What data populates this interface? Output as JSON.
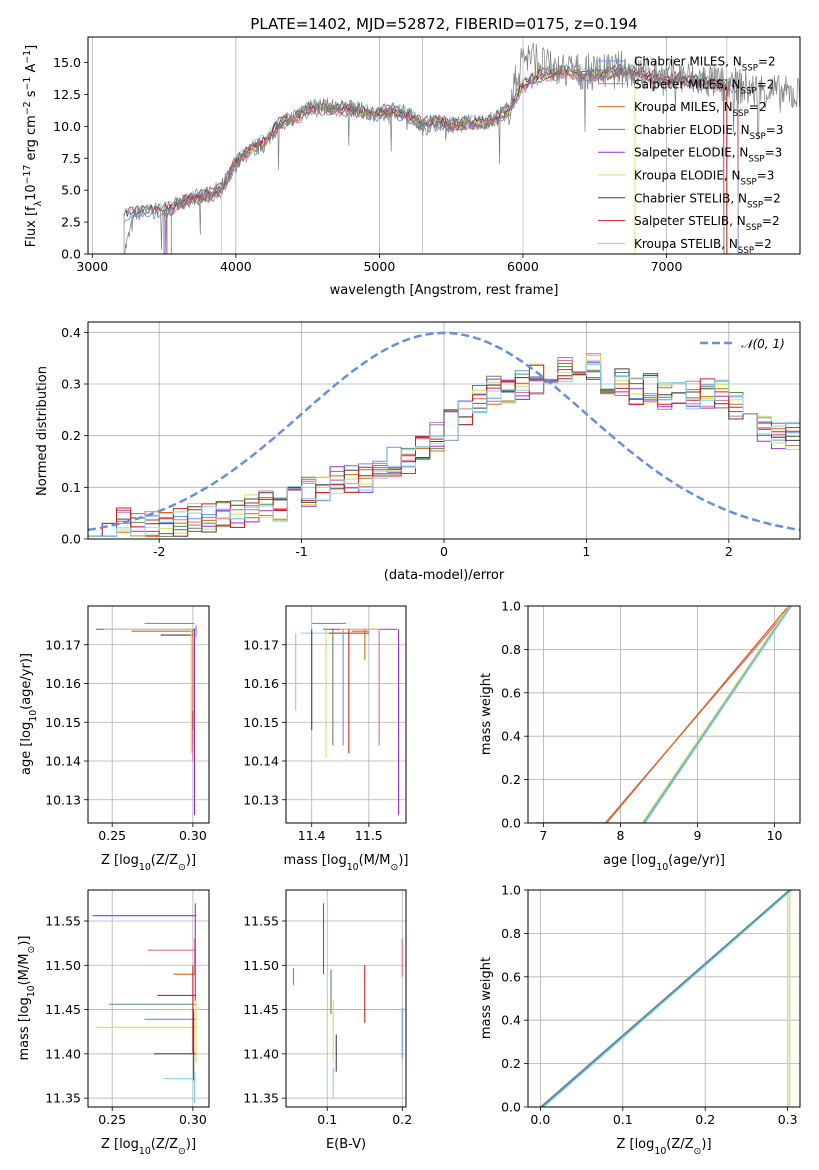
{
  "chart_data": [
    {
      "type": "line",
      "title": "PLATE=1402, MJD=52872, FIBERID=0175, z=0.194",
      "xlabel": "wavelength [Angstrom, rest frame]",
      "ylabel": "Flux [f$_\\lambda$10$^{-17}$ erg cm$^{-2}$ s$^{-1}$ A$^{-1}$]",
      "ylabel_parts": [
        "Flux [f",
        "λ",
        "10",
        "−17",
        " erg cm",
        "−2",
        " s",
        "−1",
        " A",
        "−1",
        "]"
      ],
      "xlim": [
        2970,
        7930
      ],
      "ylim": [
        0,
        17
      ],
      "xticks": [
        3000,
        4000,
        5000,
        6000,
        7000
      ],
      "yticks": [
        0.0,
        2.5,
        5.0,
        7.5,
        10.0,
        12.5,
        15.0
      ],
      "grid_x": [
        3000,
        4000,
        5000,
        6000,
        7000
      ],
      "legend_position": "right",
      "data_series": {
        "name": "data",
        "color": "#808080",
        "x": [
          3220,
          3300,
          3400,
          3500,
          3600,
          3700,
          3800,
          3900,
          4000,
          4100,
          4200,
          4300,
          4400,
          4500,
          4600,
          4700,
          4800,
          4900,
          5000,
          5100,
          5200,
          5300,
          5400,
          5500,
          5600,
          5700,
          5800,
          5900,
          6000,
          6100,
          6200,
          6300,
          6400,
          6500,
          6600,
          6700,
          6800,
          6900,
          7000,
          7100,
          7200,
          7300,
          7400,
          7500,
          7600,
          7700,
          7800
        ],
        "y": [
          0.0,
          3.2,
          3.3,
          3.4,
          3.8,
          4.4,
          4.6,
          5.2,
          7.0,
          8.1,
          8.6,
          10.2,
          10.7,
          11.6,
          11.6,
          11.5,
          11.4,
          11.2,
          11.0,
          11.3,
          11.0,
          9.9,
          10.3,
          10.1,
          10.3,
          10.3,
          10.6,
          11.4,
          15.6,
          15.2,
          14.4,
          14.4,
          14.3,
          14.2,
          14.3,
          14.5,
          14.2,
          14.0,
          13.8,
          13.9,
          13.6,
          13.6,
          13.2,
          13.2,
          12.8,
          12.9,
          12.5
        ]
      },
      "series": [
        {
          "name": "Chabrier MILES, N_SSP=2",
          "label_parts": [
            "Chabrier MILES, N",
            "SSP",
            "=2"
          ],
          "color": "#6495ed"
        },
        {
          "name": "Salpeter MILES, N_SSP=2",
          "label_parts": [
            "Salpeter MILES, N",
            "SSP",
            "=2"
          ],
          "color": "#db7093"
        },
        {
          "name": "Kroupa MILES, N_SSP=2",
          "label_parts": [
            "Kroupa MILES, N",
            "SSP",
            "=2"
          ],
          "color": "#d2691e"
        },
        {
          "name": "Chabrier ELODIE, N_SSP=3",
          "label_parts": [
            "Chabrier ELODIE, N",
            "SSP",
            "=3"
          ],
          "color": "#5a8a5a"
        },
        {
          "name": "Salpeter ELODIE, N_SSP=3",
          "label_parts": [
            "Salpeter ELODIE, N",
            "SSP",
            "=3"
          ],
          "color": "#9932cc"
        },
        {
          "name": "Kroupa ELODIE, N_SSP=3",
          "label_parts": [
            "Kroupa ELODIE, N",
            "SSP",
            "=3"
          ],
          "color": "#d4e157"
        },
        {
          "name": "Chabrier STELIB, N_SSP=2",
          "label_parts": [
            "Chabrier STELIB, N",
            "SSP",
            "=2"
          ],
          "color": "#444444"
        },
        {
          "name": "Salpeter STELIB, N_SSP=2",
          "label_parts": [
            "Salpeter STELIB, N",
            "SSP",
            "=2"
          ],
          "color": "#cc2222"
        },
        {
          "name": "Kroupa STELIB, N_SSP=2",
          "label_parts": [
            "Kroupa STELIB, N",
            "SSP",
            "=2"
          ],
          "color": "#87ceeb"
        }
      ],
      "model_x": [
        3220,
        3300,
        3400,
        3500,
        3600,
        3700,
        3800,
        3900,
        4000,
        4100,
        4200,
        4300,
        4400,
        4500,
        4600,
        4700,
        4800,
        4900,
        5000,
        5100,
        5200,
        5300,
        5400,
        5500,
        5600,
        5700,
        5800,
        5900,
        6000,
        6100,
        6200,
        6300,
        6400,
        6500,
        6600,
        6700,
        6800,
        6900,
        7000,
        7100,
        7200,
        7300,
        7400
      ],
      "model_y": [
        3.1,
        3.2,
        3.3,
        3.5,
        3.9,
        4.4,
        4.6,
        5.0,
        7.2,
        8.2,
        8.8,
        10.1,
        10.6,
        11.3,
        11.5,
        11.4,
        11.3,
        11.1,
        11.0,
        11.2,
        10.9,
        10.2,
        10.4,
        10.1,
        10.2,
        10.3,
        10.5,
        11.3,
        13.2,
        13.9,
        14.2,
        14.3,
        14.1,
        14.1,
        14.2,
        14.4,
        14.1,
        13.9,
        13.7,
        13.7,
        13.5,
        13.4,
        13.2
      ],
      "model_starts": [
        3220,
        3500,
        3550,
        3520,
        3500,
        3900,
        3220,
        3220,
        3220
      ],
      "model_ends": [
        7500,
        7400,
        7500,
        7400,
        7500,
        6780,
        7420,
        7420,
        7500
      ]
    },
    {
      "type": "line",
      "xlabel": "(data-model)/error",
      "ylabel": "Normed distribution",
      "xlim": [
        -2.5,
        2.5
      ],
      "ylim": [
        0,
        0.42
      ],
      "xticks": [
        -2,
        -1,
        0,
        1,
        2
      ],
      "yticks": [
        0.0,
        0.1,
        0.2,
        0.3,
        0.4
      ],
      "gauss_label": "𝒩(0, 1)",
      "gauss_color": "#6a8fd8",
      "hist_bins": [
        -2.5,
        -2.4,
        -2.3,
        -2.2,
        -2.1,
        -2.0,
        -1.9,
        -1.8,
        -1.7,
        -1.6,
        -1.5,
        -1.4,
        -1.3,
        -1.2,
        -1.1,
        -1.0,
        -0.9,
        -0.8,
        -0.7,
        -0.6,
        -0.5,
        -0.4,
        -0.3,
        -0.2,
        -0.1,
        0.0,
        0.1,
        0.2,
        0.3,
        0.4,
        0.5,
        0.6,
        0.7,
        0.8,
        0.9,
        1.0,
        1.1,
        1.2,
        1.3,
        1.4,
        1.5,
        1.6,
        1.7,
        1.8,
        1.9,
        2.0,
        2.1,
        2.2,
        2.3,
        2.4,
        2.5
      ],
      "hist_base": [
        0.02,
        0.02,
        0.03,
        0.02,
        0.03,
        0.03,
        0.03,
        0.04,
        0.04,
        0.05,
        0.05,
        0.06,
        0.07,
        0.06,
        0.08,
        0.09,
        0.1,
        0.11,
        0.12,
        0.12,
        0.14,
        0.15,
        0.15,
        0.17,
        0.2,
        0.22,
        0.25,
        0.27,
        0.29,
        0.29,
        0.3,
        0.31,
        0.33,
        0.33,
        0.33,
        0.33,
        0.31,
        0.3,
        0.29,
        0.29,
        0.28,
        0.28,
        0.28,
        0.28,
        0.28,
        0.26,
        0.23,
        0.21,
        0.2,
        0.2
      ]
    },
    {
      "type": "scatter",
      "xlabel_parts": [
        "Z [log",
        "10",
        "(Z/Z",
        "⊙",
        ")]"
      ],
      "ylabel_parts": [
        "age  [log",
        "10",
        "(age/yr)]"
      ],
      "xlim": [
        0.235,
        0.31
      ],
      "ylim": [
        10.124,
        10.18
      ],
      "xticks": [
        0.25,
        0.3
      ],
      "xticklabels": [
        "0.25",
        "0.30"
      ],
      "yticks": [
        10.13,
        10.14,
        10.15,
        10.16,
        10.17
      ],
      "yticklabels": [
        "10.13",
        "10.14",
        "10.15",
        "10.16",
        "10.17"
      ],
      "h_segments": [
        [
          0.27,
          0.301,
          10.1755,
          0
        ],
        [
          0.24,
          0.302,
          10.174,
          4
        ],
        [
          0.245,
          0.3,
          10.174,
          5
        ],
        [
          0.28,
          0.3,
          10.1725,
          6
        ],
        [
          0.262,
          0.3,
          10.1735,
          2
        ]
      ],
      "v_segments": [
        [
          0.3,
          10.143,
          10.174,
          2
        ],
        [
          0.301,
          10.126,
          10.174,
          4
        ],
        [
          0.299,
          10.142,
          10.174,
          5
        ],
        [
          0.3,
          10.142,
          10.153,
          7
        ],
        [
          0.3,
          10.14,
          10.148,
          1
        ],
        [
          0.302,
          10.172,
          10.175,
          0
        ]
      ]
    },
    {
      "type": "scatter",
      "xlabel_parts": [
        "mass [log",
        "10",
        "(M/M",
        "⊙",
        ")]"
      ],
      "xlim": [
        11.355,
        11.565
      ],
      "ylim": [
        10.124,
        10.18
      ],
      "xticks": [
        11.4,
        11.5
      ],
      "xticklabels": [
        "11.4",
        "11.5"
      ],
      "yticks": [
        10.13,
        10.14,
        10.15,
        10.16,
        10.17
      ],
      "yticklabels": [
        "10.13",
        "10.14",
        "10.15",
        "10.16",
        "10.17"
      ],
      "h_segments": [
        [
          11.38,
          11.45,
          10.173,
          8
        ],
        [
          11.42,
          11.55,
          10.174,
          4
        ],
        [
          11.4,
          11.46,
          10.1755,
          0
        ],
        [
          11.43,
          11.5,
          10.173,
          7
        ],
        [
          11.45,
          11.52,
          10.174,
          5
        ],
        [
          11.47,
          11.5,
          10.1735,
          2
        ]
      ],
      "v_segments": [
        [
          11.372,
          10.153,
          10.173,
          8
        ],
        [
          11.4,
          10.148,
          10.174,
          6
        ],
        [
          11.425,
          10.141,
          10.174,
          5
        ],
        [
          11.437,
          10.144,
          10.174,
          3
        ],
        [
          11.455,
          10.144,
          10.174,
          0
        ],
        [
          11.465,
          10.142,
          10.174,
          7
        ],
        [
          11.493,
          10.166,
          10.174,
          2
        ],
        [
          11.518,
          10.144,
          10.174,
          1
        ],
        [
          11.552,
          10.126,
          10.174,
          4
        ]
      ]
    },
    {
      "type": "line",
      "xlabel_parts": [
        "age  [log",
        "10",
        "(age/yr)]"
      ],
      "ylabel": "mass weight",
      "xlim": [
        6.8,
        10.33
      ],
      "ylim": [
        0,
        1
      ],
      "xticks": [
        7,
        8,
        9,
        10
      ],
      "yticks": [
        0.0,
        0.2,
        0.4,
        0.6,
        0.8,
        1.0
      ],
      "lines": [
        {
          "x": [
            6.9,
            7.8,
            10.17,
            10.17
          ],
          "y": [
            0.0,
            0.0,
            0.98,
            1.0
          ],
          "c": 1
        },
        {
          "x": [
            6.9,
            8.3,
            10.2,
            10.2
          ],
          "y": [
            0.0,
            0.0,
            1.0,
            1.0
          ],
          "c": 0
        },
        {
          "x": [
            6.9,
            8.32,
            10.22
          ],
          "y": [
            0.0,
            0.0,
            1.0
          ],
          "c": 8
        },
        {
          "x": [
            6.9,
            8.28,
            10.19
          ],
          "y": [
            0.0,
            0.0,
            1.0
          ],
          "c": 5
        },
        {
          "x": [
            6.9,
            7.82,
            10.16
          ],
          "y": [
            0.0,
            0.0,
            0.99
          ],
          "c": 2
        }
      ]
    },
    {
      "type": "scatter",
      "xlabel_parts": [
        "Z [log",
        "10",
        "(Z/Z",
        "⊙",
        ")]"
      ],
      "ylabel_parts": [
        "mass [log",
        "10",
        "(M/M",
        "⊙",
        ")]"
      ],
      "xlim": [
        0.235,
        0.31
      ],
      "ylim": [
        11.34,
        11.585
      ],
      "xticks": [
        0.25,
        0.3
      ],
      "xticklabels": [
        "0.25",
        "0.30"
      ],
      "yticks": [
        11.35,
        11.4,
        11.45,
        11.5,
        11.55
      ],
      "yticklabels": [
        "11.35",
        "11.40",
        "11.45",
        "11.50",
        "11.55"
      ],
      "h_segments": [
        [
          0.238,
          0.302,
          11.556,
          4
        ],
        [
          0.272,
          0.302,
          11.517,
          1
        ],
        [
          0.288,
          0.302,
          11.49,
          2
        ],
        [
          0.278,
          0.302,
          11.466,
          7
        ],
        [
          0.248,
          0.302,
          11.456,
          3
        ],
        [
          0.27,
          0.302,
          11.439,
          0
        ],
        [
          0.24,
          0.302,
          11.43,
          5
        ],
        [
          0.276,
          0.302,
          11.4,
          6
        ],
        [
          0.282,
          0.302,
          11.372,
          8
        ]
      ],
      "v_segments": [
        [
          0.3015,
          11.46,
          11.57,
          4
        ],
        [
          0.301,
          11.49,
          11.53,
          1
        ],
        [
          0.3,
          11.4,
          11.5,
          7
        ],
        [
          0.302,
          11.39,
          11.46,
          5
        ],
        [
          0.3005,
          11.37,
          11.45,
          6
        ],
        [
          0.301,
          11.345,
          11.38,
          8
        ]
      ]
    },
    {
      "type": "scatter",
      "xlabel": "E(B-V)",
      "xlim": [
        0.045,
        0.205
      ],
      "ylim": [
        11.34,
        11.585
      ],
      "xticks": [
        0.1,
        0.2
      ],
      "xticklabels": [
        "0.1",
        "0.2"
      ],
      "yticks": [
        11.35,
        11.4,
        11.45,
        11.5,
        11.55
      ],
      "yticklabels": [
        "11.35",
        "11.40",
        "11.45",
        "11.50",
        "11.55"
      ],
      "v_segments": [
        [
          0.055,
          11.478,
          11.497,
          2
        ],
        [
          0.095,
          11.49,
          11.57,
          4
        ],
        [
          0.105,
          11.445,
          11.495,
          3
        ],
        [
          0.108,
          11.39,
          11.46,
          5
        ],
        [
          0.112,
          11.38,
          11.422,
          6
        ],
        [
          0.108,
          11.35,
          11.385,
          8
        ],
        [
          0.15,
          11.435,
          11.5,
          7
        ],
        [
          0.2,
          11.487,
          11.53,
          1
        ],
        [
          0.2,
          11.395,
          11.452,
          0
        ]
      ]
    },
    {
      "type": "line",
      "xlabel_parts": [
        "Z [log",
        "10",
        "(Z/Z",
        "⊙",
        ")]"
      ],
      "ylabel": "mass weight",
      "xlim": [
        -0.015,
        0.315
      ],
      "ylim": [
        0,
        1
      ],
      "xticks": [
        0.0,
        0.1,
        0.2,
        0.3
      ],
      "xticklabels": [
        "0.0",
        "0.1",
        "0.2",
        "0.3"
      ],
      "yticks": [
        0.0,
        0.2,
        0.4,
        0.6,
        0.8,
        1.0
      ],
      "lines": [
        {
          "x": [
            0.0,
            0.3,
            0.3
          ],
          "y": [
            0.0,
            0.0,
            1.0
          ],
          "c": 5
        },
        {
          "x": [
            0.3025,
            0.3025
          ],
          "y": [
            0.0,
            1.0
          ],
          "c": 5
        },
        {
          "x": [
            0.0,
            0.302
          ],
          "y": [
            0.0,
            1.0
          ],
          "c": 0
        },
        {
          "x": [
            0.002,
            0.303
          ],
          "y": [
            0.0,
            1.0
          ],
          "c": 3
        },
        {
          "x": [
            0.004,
            0.305
          ],
          "y": [
            0.0,
            1.0
          ],
          "c": 8
        }
      ]
    }
  ]
}
